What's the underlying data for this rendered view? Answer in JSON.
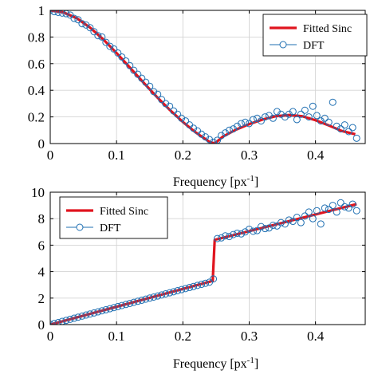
{
  "colors": {
    "fitted_sinc": "#e0141e",
    "dft": "#1f6fb2",
    "grid": "#d4d4d4",
    "axis": "#000000"
  },
  "chart_data": [
    {
      "type": "scatter",
      "title": "",
      "xlabel": "Frequency [px",
      "xlabel_superscript": "-1",
      "xlabel_suffix": "]",
      "ylabel": "",
      "xlim": [
        0,
        0.475
      ],
      "ylim": [
        0,
        1
      ],
      "xticks": [
        0,
        0.1,
        0.2,
        0.3,
        0.4
      ],
      "xtick_labels": [
        "0",
        "0.1",
        "0.2",
        "0.3",
        "0.4"
      ],
      "yticks": [
        0,
        0.2,
        0.4,
        0.6,
        0.8,
        1
      ],
      "ytick_labels": [
        "0",
        "0.2",
        "0.4",
        "0.6",
        "0.8",
        "1"
      ],
      "grid": true,
      "legend_position": "top-right",
      "series": [
        {
          "name": "Fitted Sinc",
          "kind": "line",
          "x": [
            0,
            0.02,
            0.04,
            0.06,
            0.08,
            0.1,
            0.12,
            0.14,
            0.16,
            0.18,
            0.2,
            0.22,
            0.24,
            0.248,
            0.26,
            0.28,
            0.3,
            0.32,
            0.34,
            0.36,
            0.38,
            0.4,
            0.42,
            0.44,
            0.46
          ],
          "y": [
            1.0,
            0.985,
            0.941,
            0.871,
            0.782,
            0.68,
            0.571,
            0.461,
            0.354,
            0.254,
            0.162,
            0.081,
            0.013,
            0.0,
            0.051,
            0.104,
            0.146,
            0.18,
            0.205,
            0.214,
            0.205,
            0.175,
            0.136,
            0.094,
            0.07
          ]
        },
        {
          "name": "DFT",
          "kind": "markers",
          "x": [
            0,
            0.006,
            0.012,
            0.018,
            0.024,
            0.03,
            0.036,
            0.042,
            0.048,
            0.054,
            0.06,
            0.066,
            0.072,
            0.078,
            0.084,
            0.09,
            0.096,
            0.102,
            0.108,
            0.114,
            0.12,
            0.126,
            0.132,
            0.138,
            0.144,
            0.15,
            0.156,
            0.162,
            0.168,
            0.174,
            0.18,
            0.186,
            0.192,
            0.198,
            0.204,
            0.21,
            0.216,
            0.222,
            0.228,
            0.234,
            0.24,
            0.246,
            0.252,
            0.258,
            0.264,
            0.27,
            0.276,
            0.282,
            0.288,
            0.294,
            0.3,
            0.306,
            0.312,
            0.318,
            0.324,
            0.33,
            0.336,
            0.342,
            0.348,
            0.354,
            0.36,
            0.366,
            0.372,
            0.378,
            0.384,
            0.39,
            0.396,
            0.402,
            0.408,
            0.414,
            0.42,
            0.426,
            0.432,
            0.438,
            0.444,
            0.45,
            0.456,
            0.462
          ],
          "y": [
            1.0,
            0.99,
            0.985,
            0.98,
            0.975,
            0.965,
            0.94,
            0.93,
            0.9,
            0.89,
            0.87,
            0.84,
            0.81,
            0.8,
            0.76,
            0.73,
            0.71,
            0.68,
            0.65,
            0.62,
            0.585,
            0.55,
            0.52,
            0.49,
            0.46,
            0.43,
            0.39,
            0.37,
            0.33,
            0.3,
            0.28,
            0.245,
            0.22,
            0.19,
            0.17,
            0.14,
            0.115,
            0.095,
            0.07,
            0.05,
            0.03,
            0.01,
            0.025,
            0.06,
            0.08,
            0.1,
            0.11,
            0.13,
            0.15,
            0.16,
            0.15,
            0.18,
            0.19,
            0.17,
            0.2,
            0.21,
            0.19,
            0.24,
            0.22,
            0.2,
            0.22,
            0.24,
            0.18,
            0.22,
            0.25,
            0.2,
            0.28,
            0.21,
            0.17,
            0.19,
            0.16,
            0.31,
            0.13,
            0.11,
            0.14,
            0.09,
            0.12,
            0.04
          ]
        }
      ]
    },
    {
      "type": "scatter",
      "title": "",
      "xlabel": "Frequency [px",
      "xlabel_superscript": "-1",
      "xlabel_suffix": "]",
      "ylabel": "",
      "xlim": [
        0,
        0.475
      ],
      "ylim": [
        0,
        10
      ],
      "xticks": [
        0,
        0.1,
        0.2,
        0.3,
        0.4
      ],
      "xtick_labels": [
        "0",
        "0.1",
        "0.2",
        "0.3",
        "0.4"
      ],
      "yticks": [
        0,
        2,
        4,
        6,
        8,
        10
      ],
      "ytick_labels": [
        "0",
        "2",
        "4",
        "6",
        "8",
        "10"
      ],
      "grid": true,
      "legend_position": "top-left",
      "series": [
        {
          "name": "Fitted Sinc",
          "kind": "line",
          "x": [
            0,
            0.245,
            0.248,
            0.462
          ],
          "y": [
            0,
            3.3,
            6.4,
            9.1
          ]
        },
        {
          "name": "DFT",
          "kind": "markers",
          "x": [
            0,
            0.006,
            0.012,
            0.018,
            0.024,
            0.03,
            0.036,
            0.042,
            0.048,
            0.054,
            0.06,
            0.066,
            0.072,
            0.078,
            0.084,
            0.09,
            0.096,
            0.102,
            0.108,
            0.114,
            0.12,
            0.126,
            0.132,
            0.138,
            0.144,
            0.15,
            0.156,
            0.162,
            0.168,
            0.174,
            0.18,
            0.186,
            0.192,
            0.198,
            0.204,
            0.21,
            0.216,
            0.222,
            0.228,
            0.234,
            0.24,
            0.246,
            0.252,
            0.258,
            0.264,
            0.27,
            0.276,
            0.282,
            0.288,
            0.294,
            0.3,
            0.306,
            0.312,
            0.318,
            0.324,
            0.33,
            0.336,
            0.342,
            0.348,
            0.354,
            0.36,
            0.366,
            0.372,
            0.378,
            0.384,
            0.39,
            0.396,
            0.402,
            0.408,
            0.414,
            0.42,
            0.426,
            0.432,
            0.438,
            0.444,
            0.45,
            0.456,
            0.462
          ],
          "y": [
            0.02,
            0.08,
            0.15,
            0.24,
            0.32,
            0.4,
            0.48,
            0.56,
            0.64,
            0.72,
            0.8,
            0.88,
            0.96,
            1.04,
            1.12,
            1.2,
            1.28,
            1.36,
            1.44,
            1.52,
            1.6,
            1.68,
            1.76,
            1.84,
            1.92,
            2.0,
            2.08,
            2.16,
            2.24,
            2.32,
            2.4,
            2.48,
            2.56,
            2.64,
            2.72,
            2.8,
            2.88,
            2.96,
            3.04,
            3.12,
            3.2,
            3.45,
            6.5,
            6.55,
            6.7,
            6.65,
            6.8,
            6.9,
            6.85,
            7.0,
            7.2,
            7.05,
            7.1,
            7.4,
            7.25,
            7.3,
            7.5,
            7.45,
            7.7,
            7.6,
            7.9,
            7.8,
            8.1,
            7.7,
            8.2,
            8.5,
            8.0,
            8.6,
            7.6,
            8.8,
            8.7,
            9.0,
            8.5,
            9.2,
            8.9,
            8.8,
            9.1,
            8.6
          ]
        }
      ]
    }
  ]
}
